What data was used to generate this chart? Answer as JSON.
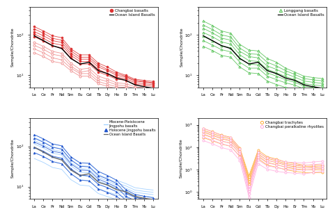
{
  "elements": [
    "La",
    "Ce",
    "Pr",
    "Nd",
    "Sm",
    "Eu",
    "Gd",
    "Tb",
    "Dy",
    "Ho",
    "Er",
    "Tm",
    "Yb",
    "Lu"
  ],
  "oib_values": [
    95,
    72,
    54,
    46,
    26,
    19,
    21,
    13,
    11,
    8.5,
    7.5,
    5.8,
    5.2,
    4.8
  ],
  "panel1": {
    "legend1": "Changbai basalts",
    "legend2": "Ocean Island Basalts",
    "filled_color": "#dd3333",
    "open_color": "#ee8888",
    "filled_data": [
      [
        160,
        125,
        95,
        85,
        45,
        32,
        32,
        20,
        16,
        12,
        10,
        8,
        7.5,
        7.0
      ],
      [
        140,
        110,
        82,
        74,
        40,
        28,
        28,
        18,
        14,
        11,
        9.5,
        7.5,
        7.0,
        6.5
      ],
      [
        120,
        95,
        72,
        65,
        35,
        25,
        25,
        16,
        13,
        10,
        9,
        7.2,
        6.8,
        6.3
      ],
      [
        105,
        82,
        62,
        56,
        31,
        22,
        22,
        14,
        11,
        9,
        8.2,
        6.6,
        6.2,
        5.8
      ],
      [
        90,
        70,
        53,
        48,
        27,
        19,
        19,
        12,
        10,
        8,
        7.5,
        6.0,
        5.7,
        5.3
      ]
    ],
    "open_data": [
      [
        65,
        52,
        39,
        35,
        20,
        14,
        15,
        9.5,
        8,
        6.5,
        6.2,
        5.2,
        4.9,
        4.6
      ],
      [
        55,
        44,
        33,
        30,
        17,
        12,
        13,
        8,
        7,
        5.8,
        5.5,
        4.7,
        4.4,
        4.2
      ],
      [
        45,
        36,
        27,
        24,
        15,
        11,
        11,
        7,
        6,
        5.2,
        5.0,
        4.3,
        4.0,
        3.8
      ],
      [
        36,
        29,
        22,
        20,
        13,
        9.5,
        9.5,
        6.2,
        5.3,
        4.7,
        4.5,
        3.9,
        3.7,
        3.5
      ]
    ],
    "ylim": [
      5,
      500
    ],
    "ytick_vals": [
      10,
      100
    ]
  },
  "panel2": {
    "legend1": "Longgang basalts",
    "legend2": "Ocean Island Basalts",
    "color": "#44bb44",
    "data": [
      [
        220,
        170,
        125,
        110,
        58,
        42,
        40,
        26,
        21,
        15,
        12,
        9.5,
        8.8,
        8.3
      ],
      [
        175,
        136,
        100,
        89,
        47,
        34,
        33,
        21,
        17,
        13,
        10.5,
        8.3,
        7.7,
        7.3
      ],
      [
        145,
        112,
        83,
        74,
        39,
        29,
        27,
        17,
        14,
        11,
        9,
        7.2,
        6.7,
        6.3
      ],
      [
        115,
        90,
        67,
        59,
        32,
        23,
        22,
        14,
        11.5,
        9.3,
        7.8,
        6.2,
        5.8,
        5.5
      ],
      [
        92,
        71,
        54,
        48,
        26,
        19,
        18,
        11.5,
        9.5,
        7.8,
        6.7,
        5.4,
        5.0,
        4.8
      ],
      [
        72,
        56,
        43,
        38,
        21,
        15,
        15,
        9.5,
        7.8,
        6.5,
        5.7,
        4.6,
        4.3,
        4.1
      ],
      [
        52,
        41,
        31,
        28,
        16,
        11.5,
        11,
        7.2,
        5.9,
        5.0,
        4.6,
        3.8,
        3.5,
        3.4
      ]
    ],
    "ylim": [
      5,
      500
    ],
    "ytick_vals": [
      10,
      100
    ]
  },
  "panel3": {
    "legend1": "Miocene-Pleistocene\nJingpohu basalts",
    "legend2": "Holocene Jingpohu basalts",
    "legend3": "Ocean Island Basalts",
    "light_blue": "#99ccff",
    "blue": "#2255cc",
    "light_data": [
      [
        195,
        153,
        115,
        103,
        55,
        39,
        38,
        24,
        19,
        14.5,
        12,
        9.5,
        8.8,
        8.3
      ],
      [
        165,
        130,
        97,
        87,
        47,
        33,
        32,
        20,
        16,
        12.5,
        10.5,
        8.3,
        7.7,
        7.3
      ],
      [
        140,
        110,
        83,
        74,
        40,
        28,
        27,
        17,
        14,
        11,
        9.2,
        7.3,
        6.8,
        6.4
      ],
      [
        115,
        91,
        68,
        61,
        33,
        23,
        22,
        14,
        11.5,
        9.2,
        7.9,
        6.3,
        5.9,
        5.6
      ],
      [
        92,
        73,
        55,
        49,
        27,
        19,
        18,
        11.5,
        9.5,
        7.7,
        6.7,
        5.4,
        5.0,
        4.8
      ],
      [
        70,
        56,
        42,
        37,
        21,
        15,
        14,
        9,
        7.5,
        6.3,
        5.5,
        4.4,
        4.1,
        3.9
      ],
      [
        50,
        40,
        30,
        27,
        15,
        11,
        10.5,
        6.8,
        5.7,
        4.8,
        4.3,
        3.5,
        3.2,
        3.1
      ]
    ],
    "dark_data": [
      [
        195,
        153,
        115,
        103,
        55,
        39,
        38,
        24,
        19,
        14.5,
        8.5,
        6.5,
        5.8,
        5.3
      ],
      [
        160,
        126,
        95,
        85,
        46,
        32,
        31,
        19,
        15.5,
        12,
        7.0,
        5.5,
        4.9,
        4.5
      ],
      [
        128,
        101,
        76,
        68,
        37,
        26,
        25,
        15.5,
        12.5,
        9.8,
        5.8,
        4.6,
        4.1,
        3.8
      ],
      [
        96,
        76,
        57,
        51,
        28,
        19.5,
        18.5,
        11.5,
        9.5,
        7.5,
        4.7,
        3.8,
        3.4,
        3.2
      ],
      [
        70,
        56,
        42,
        37,
        21,
        14.5,
        14,
        8.8,
        7.2,
        5.8,
        4.0,
        3.3,
        2.9,
        2.8
      ]
    ],
    "ylim": [
      5,
      500
    ],
    "ytick_vals": [
      10,
      100
    ]
  },
  "panel4": {
    "legend1": "Changbai trachytes",
    "legend2": "Changbai peralkaline rhyolites",
    "orange": "#ffaa33",
    "pink": "#ffaadd",
    "trachyte_data": [
      [
        700,
        500,
        350,
        280,
        95,
        5.5,
        75,
        38,
        30,
        22,
        19,
        16,
        16,
        16
      ],
      [
        580,
        420,
        295,
        235,
        78,
        4.5,
        62,
        32,
        25,
        19,
        16,
        14,
        14,
        14
      ],
      [
        470,
        340,
        240,
        192,
        64,
        3.7,
        51,
        26,
        21,
        16,
        13.5,
        12,
        12,
        12
      ],
      [
        370,
        268,
        190,
        152,
        52,
        3.0,
        41,
        21,
        17,
        13,
        11,
        10,
        10,
        10
      ],
      [
        270,
        196,
        139,
        111,
        40,
        2.3,
        31,
        16,
        13,
        10,
        8.5,
        7.5,
        7.5,
        7.5
      ]
    ],
    "rhyolite_data": [
      [
        700,
        490,
        335,
        265,
        88,
        1.8,
        62,
        34,
        28,
        22,
        21,
        20,
        22,
        24
      ],
      [
        530,
        373,
        255,
        202,
        67,
        1.4,
        47,
        26,
        22,
        17,
        16.5,
        15.5,
        17,
        18.5
      ],
      [
        400,
        282,
        193,
        153,
        51,
        1.1,
        36,
        20,
        16.5,
        13.5,
        13,
        12,
        13,
        14.5
      ],
      [
        295,
        208,
        143,
        113,
        38,
        0.85,
        27,
        15,
        12.5,
        10.5,
        10,
        9.5,
        10.5,
        11.5
      ],
      [
        200,
        142,
        97,
        77,
        26,
        0.6,
        18.5,
        10.5,
        8.5,
        7.5,
        7.0,
        6.5,
        7.5,
        8.5
      ]
    ],
    "ylim": [
      0.5,
      2000
    ],
    "ytick_vals": [
      1,
      10,
      100,
      1000
    ]
  }
}
